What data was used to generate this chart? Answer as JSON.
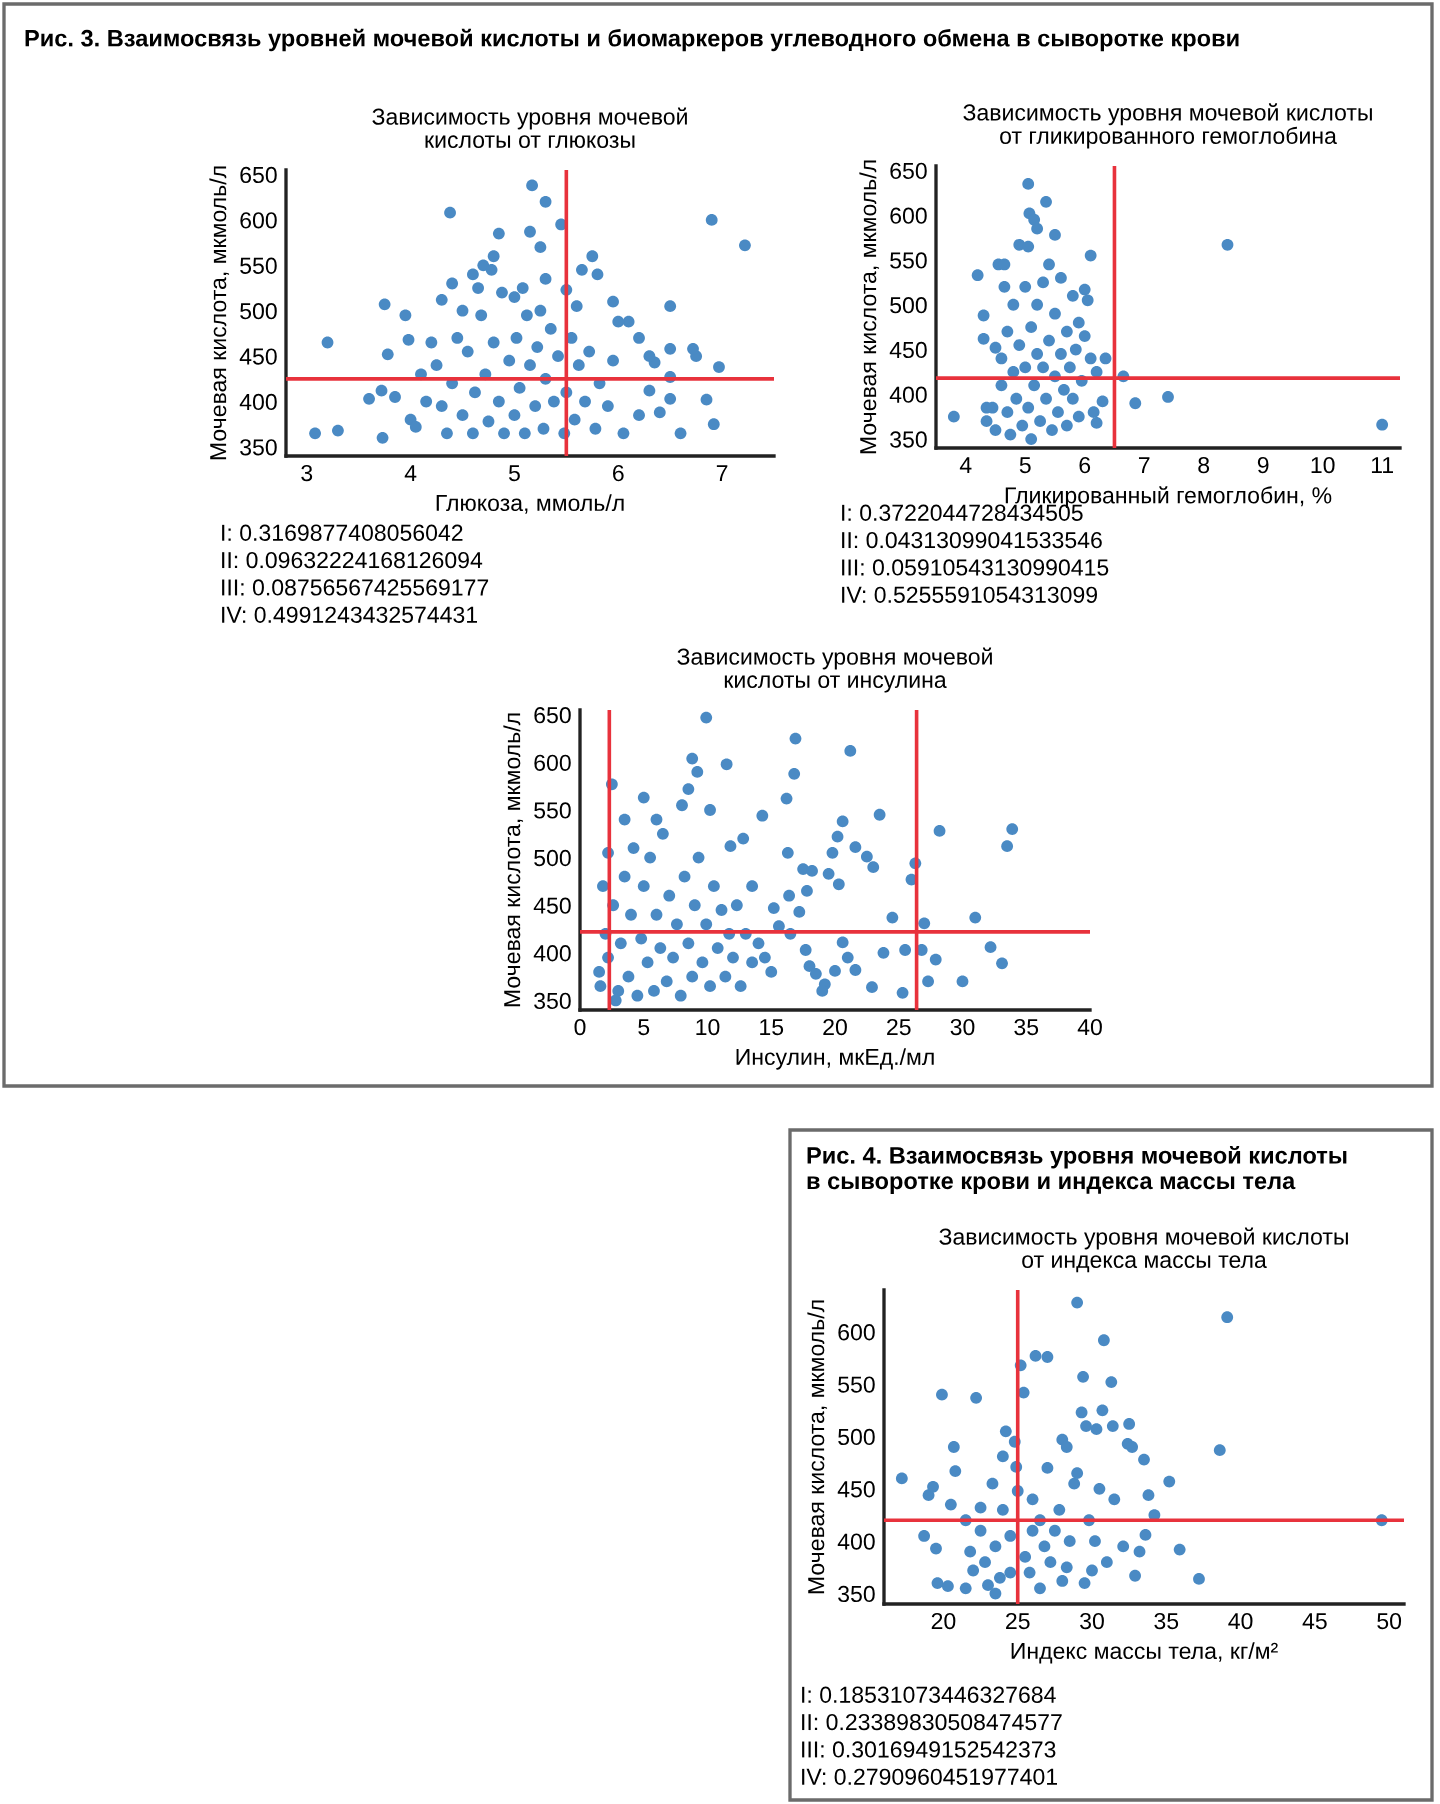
{
  "chart_data": [
    {
      "type": "scatter",
      "title": "Зависимость уровня мочевой\nкислоты от глюкозы",
      "xlabel": "Глюкоза, ммоль/л",
      "ylabel": "Мочевая кислота, мкмоль/л",
      "annotations": [
        "Рис. 3. Взаимосвязь уровней мочевой кислоты и биомаркеров углеводного обмена в сыворотке крови",
        "I: 0.3169877408056042\nII: 0.09632224168126094\nIII: 0.08756567425569177\nIV: 0.4991243432574431"
      ],
      "xlim": [
        2.8,
        7.5
      ],
      "ylim": [
        340,
        655
      ],
      "xticks": [
        3,
        4,
        5,
        6,
        7
      ],
      "yticks": [
        350,
        400,
        450,
        500,
        550,
        600,
        650
      ],
      "grid": false,
      "marker": "circle",
      "ref_lines": [
        {
          "axis": "x",
          "value": 5.5,
          "color": "#e8323c"
        },
        {
          "axis": "y",
          "value": 425,
          "color": "#e8323c"
        }
      ],
      "series": [
        {
          "color": "#4a8ac4",
          "x": [
            3.08,
            3.3,
            3.2,
            3.73,
            3.75,
            3.78,
            3.6,
            3.72,
            3.95,
            3.98,
            4.38,
            5.17,
            5.3,
            5.45,
            5.15,
            5.25,
            4.85,
            6.9,
            7.22,
            6.97,
            6.92,
            6.85,
            6.75,
            6.72,
            6.5,
            6.5,
            6.5,
            6.6,
            6.4,
            6.35,
            6.3,
            6.2,
            6.05,
            6.1,
            5.95,
            6.0,
            5.8,
            5.75,
            5.65,
            4.0,
            4.05,
            3.85,
            4.2,
            4.3,
            4.4,
            4.6,
            4.7,
            4.8,
            5.0,
            5.3,
            5.5,
            5.6,
            6.2,
            6.3,
            6.5,
            4.25,
            4.3,
            4.35,
            4.4,
            4.45,
            4.5,
            4.55,
            4.6,
            4.62,
            4.68,
            4.72,
            4.75,
            4.8,
            4.85,
            4.88,
            4.9,
            4.95,
            5.0,
            5.02,
            5.05,
            5.1,
            5.12,
            5.15,
            5.2,
            5.22,
            5.28,
            5.3,
            5.35,
            5.38,
            5.42,
            5.48,
            5.5,
            5.55,
            5.58,
            5.62,
            5.68,
            5.72,
            5.78,
            5.82,
            5.9,
            5.95,
            4.15,
            4.1,
            4.5,
            4.65,
            5.25,
            5.08,
            4.78
          ],
          "values": [
            365,
            368,
            465,
            360,
            507,
            452,
            403,
            412,
            495,
            468,
            608,
            638,
            620,
            595,
            587,
            570,
            585,
            600,
            572,
            438,
            375,
            402,
            450,
            458,
            505,
            427,
            403,
            365,
            388,
            443,
            412,
            385,
            365,
            488,
            510,
            488,
            540,
            560,
            545,
            380,
            372,
            405,
            465,
            512,
            530,
            540,
            550,
            560,
            515,
            535,
            523,
            505,
            470,
            450,
            458,
            440,
            395,
            365,
            420,
            470,
            385,
            455,
            365,
            410,
            495,
            430,
            378,
            465,
            400,
            520,
            365,
            445,
            385,
            470,
            415,
            365,
            495,
            440,
            395,
            460,
            370,
            425,
            480,
            400,
            450,
            365,
            410,
            470,
            380,
            440,
            400,
            455,
            370,
            420,
            395,
            445,
            400,
            430,
            500,
            525,
            500,
            525,
            545
          ]
        }
      ]
    },
    {
      "type": "scatter",
      "title": "Зависимость уровня мочевой кислоты\nот гликированного гемоглобина",
      "xlabel": "Гликированный гемоглобин, %",
      "ylabel": "Мочевая кислота, мкмоль/л",
      "annotations": [
        "I: 0.3722044728434505\nII: 0.04313099041533546\nIII: 0.05910543130990415\nIV: 0.5255591054313099"
      ],
      "xlim": [
        3.5,
        11.3
      ],
      "ylim": [
        340,
        655
      ],
      "xticks": [
        4,
        5,
        6,
        7,
        8,
        9,
        10,
        11
      ],
      "yticks": [
        350,
        400,
        450,
        500,
        550,
        600,
        650
      ],
      "grid": false,
      "marker": "circle",
      "ref_lines": [
        {
          "axis": "x",
          "value": 6.5,
          "color": "#e8323c"
        },
        {
          "axis": "y",
          "value": 418,
          "color": "#e8323c"
        }
      ],
      "series": [
        {
          "color": "#4a8ac4",
          "x": [
            3.8,
            4.2,
            4.3,
            4.3,
            4.35,
            4.35,
            4.45,
            4.5,
            4.55,
            4.65,
            4.9,
            5.05,
            5.07,
            5.15,
            5.2,
            5.35,
            5.5,
            5.05,
            5.4,
            6.1,
            6.0,
            6.05,
            5.9,
            6.0,
            6.1,
            6.2,
            6.35,
            6.3,
            6.15,
            6.2,
            6.65,
            6.85,
            7.4,
            8.4,
            11.0,
            4.5,
            4.6,
            4.6,
            4.7,
            4.7,
            4.75,
            4.8,
            4.8,
            4.85,
            4.9,
            4.95,
            5.0,
            5.0,
            5.05,
            5.1,
            5.1,
            5.15,
            5.2,
            5.2,
            5.25,
            5.3,
            5.3,
            5.35,
            5.4,
            5.45,
            5.5,
            5.5,
            5.55,
            5.6,
            5.65,
            5.7,
            5.7,
            5.75,
            5.8,
            5.85,
            5.9,
            5.95,
            4.65,
            5.6,
            5.8
          ],
          "values": [
            375,
            533,
            488,
            462,
            385,
            370,
            385,
            452,
            545,
            545,
            567,
            635,
            602,
            595,
            585,
            615,
            578,
            565,
            545,
            555,
            517,
            505,
            480,
            465,
            440,
            425,
            440,
            392,
            380,
            368,
            420,
            390,
            397,
            567,
            366,
            360,
            410,
            440,
            380,
            470,
            355,
            425,
            500,
            395,
            455,
            365,
            430,
            520,
            385,
            475,
            350,
            410,
            445,
            500,
            370,
            430,
            525,
            395,
            460,
            360,
            420,
            490,
            380,
            445,
            405,
            470,
            365,
            430,
            395,
            450,
            375,
            415,
            520,
            530,
            510
          ]
        }
      ]
    },
    {
      "type": "scatter",
      "title": "Зависимость уровня мочевой\nкислоты от инсулина",
      "xlabel": "Инсулин, мкЕд./мл",
      "ylabel": "Мочевая кислота, мкмоль/л",
      "xlim": [
        0,
        40
      ],
      "ylim": [
        340,
        655
      ],
      "xticks": [
        0,
        5,
        10,
        15,
        20,
        25,
        30,
        35,
        40
      ],
      "yticks": [
        350,
        400,
        450,
        500,
        550,
        600,
        650
      ],
      "grid": false,
      "marker": "circle",
      "ref_lines": [
        {
          "axis": "x",
          "value": 2.3,
          "color": "#e8323c"
        },
        {
          "axis": "x",
          "value": 26.4,
          "color": "#e8323c"
        },
        {
          "axis": "y",
          "value": 422,
          "color": "#e8323c"
        }
      ],
      "series": [
        {
          "color": "#4a8ac4",
          "x": [
            2.5,
            2.2,
            5.0,
            8.8,
            9.2,
            9.9,
            11.5,
            8.5,
            8.0,
            14.3,
            16.2,
            16.9,
            16.8,
            21.2,
            20.6,
            20.2,
            21.6,
            22.5,
            23.0,
            23.5,
            19.8,
            19.5,
            20.3,
            17.5,
            18.2,
            16.3,
            17.8,
            17.2,
            16.4,
            15.2,
            15.6,
            16.5,
            17.7,
            18.0,
            18.5,
            19.2,
            19.0,
            20.0,
            20.6,
            21.0,
            21.6,
            22.9,
            23.8,
            24.5,
            25.3,
            25.5,
            26.0,
            26.3,
            26.8,
            27.0,
            27.3,
            27.9,
            28.2,
            30.0,
            31.0,
            32.2,
            33.1,
            33.5,
            33.9,
            15.0,
            14.5,
            13.5,
            12.8,
            11.8,
            10.2,
            1.5,
            1.6,
            1.8,
            2.0,
            2.2,
            2.6,
            3.0,
            3.2,
            3.5,
            3.8,
            4.0,
            4.2,
            4.5,
            4.8,
            5.0,
            5.3,
            5.5,
            5.8,
            6.0,
            6.3,
            6.5,
            6.8,
            7.0,
            7.3,
            7.6,
            7.9,
            8.2,
            8.5,
            8.8,
            9.0,
            9.3,
            9.6,
            9.9,
            10.2,
            10.5,
            10.8,
            11.1,
            11.4,
            11.7,
            12.0,
            12.3,
            12.6,
            13.0,
            13.5,
            14.0,
            3.5,
            6.0,
            2.8
          ],
          "values": [
            577,
            505,
            563,
            604,
            590,
            647,
            598,
            572,
            555,
            544,
            562,
            625,
            588,
            612,
            538,
            522,
            511,
            501,
            490,
            545,
            505,
            483,
            472,
            488,
            486,
            505,
            465,
            443,
            460,
            447,
            428,
            420,
            403,
            386,
            378,
            367,
            360,
            381,
            411,
            395,
            382,
            364,
            400,
            437,
            358,
            403,
            477,
            494,
            403,
            431,
            370,
            393,
            528,
            370,
            437,
            406,
            389,
            512,
            530,
            380,
            395,
            470,
            520,
            512,
            550,
            380,
            365,
            470,
            420,
            395,
            450,
            360,
            410,
            480,
            375,
            440,
            510,
            355,
            415,
            470,
            390,
            500,
            360,
            440,
            405,
            525,
            370,
            460,
            395,
            430,
            355,
            480,
            410,
            375,
            450,
            500,
            390,
            430,
            365,
            470,
            405,
            445,
            375,
            420,
            395,
            450,
            365,
            420,
            390,
            410,
            540,
            540,
            350
          ]
        }
      ]
    },
    {
      "type": "scatter",
      "title": "Зависимость уровня мочевой кислоты\nот индекса массы тела",
      "xlabel": "Индекс массы тела, кг/м²",
      "ylabel": "Мочевая кислота, мкмоль/л",
      "annotations": [
        "Рис. 4. Взаимосвязь уровня мочевой кислоты\nв сыворотке крови и индекса массы тела",
        "I: 0.18531073446327684\nII: 0.23389830508474577\nIII: 0.3016949152542373\nIV: 0.2790960451977401"
      ],
      "xlim": [
        16,
        51
      ],
      "ylim": [
        340,
        640
      ],
      "xticks": [
        20,
        25,
        30,
        35,
        40,
        45,
        50
      ],
      "yticks": [
        350,
        400,
        450,
        500,
        550,
        600
      ],
      "grid": false,
      "marker": "circle",
      "ref_lines": [
        {
          "axis": "x",
          "value": 25,
          "color": "#e8323c"
        },
        {
          "axis": "y",
          "value": 420,
          "color": "#e8323c"
        }
      ],
      "series": [
        {
          "color": "#4a8ac4",
          "x": [
            17.2,
            18.7,
            19.0,
            19.3,
            19.5,
            19.6,
            19.9,
            20.3,
            20.5,
            20.7,
            20.8,
            22.2,
            24.2,
            24.8,
            25.2,
            25.4,
            26.2,
            27.0,
            29.0,
            29.4,
            30.8,
            31.3,
            30.7,
            29.3,
            29.6,
            30.3,
            31.4,
            32.4,
            32.7,
            32.5,
            33.5,
            33.8,
            34.2,
            35.2,
            33.6,
            33.2,
            32.9,
            32.1,
            35.9,
            37.2,
            38.6,
            39.1,
            49.5,
            28.0,
            28.3,
            24.9,
            24.0,
            23.3,
            22.5,
            21.5,
            22.0,
            21.5,
            23.0,
            23.5,
            26.5,
            28.0,
            29.5,
            30.0,
            31.0,
            31.5,
            30.5,
            29.0,
            27.0,
            26.0,
            26.5,
            27.5,
            28.5,
            25.5,
            24.5,
            23.5,
            22.5,
            21.8,
            24.0,
            25.0,
            26.8,
            27.8,
            28.8,
            29.8,
            22.8,
            23.8,
            25.8,
            27.2,
            24.5,
            26.0,
            28.3,
            30.2
          ],
          "values": [
            460,
            405,
            444,
            452,
            393,
            360,
            540,
            357,
            435,
            490,
            467,
            537,
            505,
            495,
            568,
            542,
            577,
            576,
            628,
            557,
            592,
            552,
            525,
            523,
            510,
            507,
            510,
            493,
            490,
            512,
            478,
            444,
            425,
            457,
            406,
            390,
            367,
            395,
            392,
            364,
            487,
            614,
            420,
            497,
            490,
            471,
            481,
            455,
            432,
            420,
            372,
            355,
            358,
            350,
            355,
            362,
            360,
            372,
            380,
            440,
            450,
            465,
            470,
            440,
            420,
            410,
            400,
            385,
            370,
            395,
            410,
            390,
            430,
            448,
            395,
            430,
            455,
            420,
            380,
            365,
            370,
            380,
            405,
            410,
            375,
            400
          ]
        }
      ]
    }
  ]
}
